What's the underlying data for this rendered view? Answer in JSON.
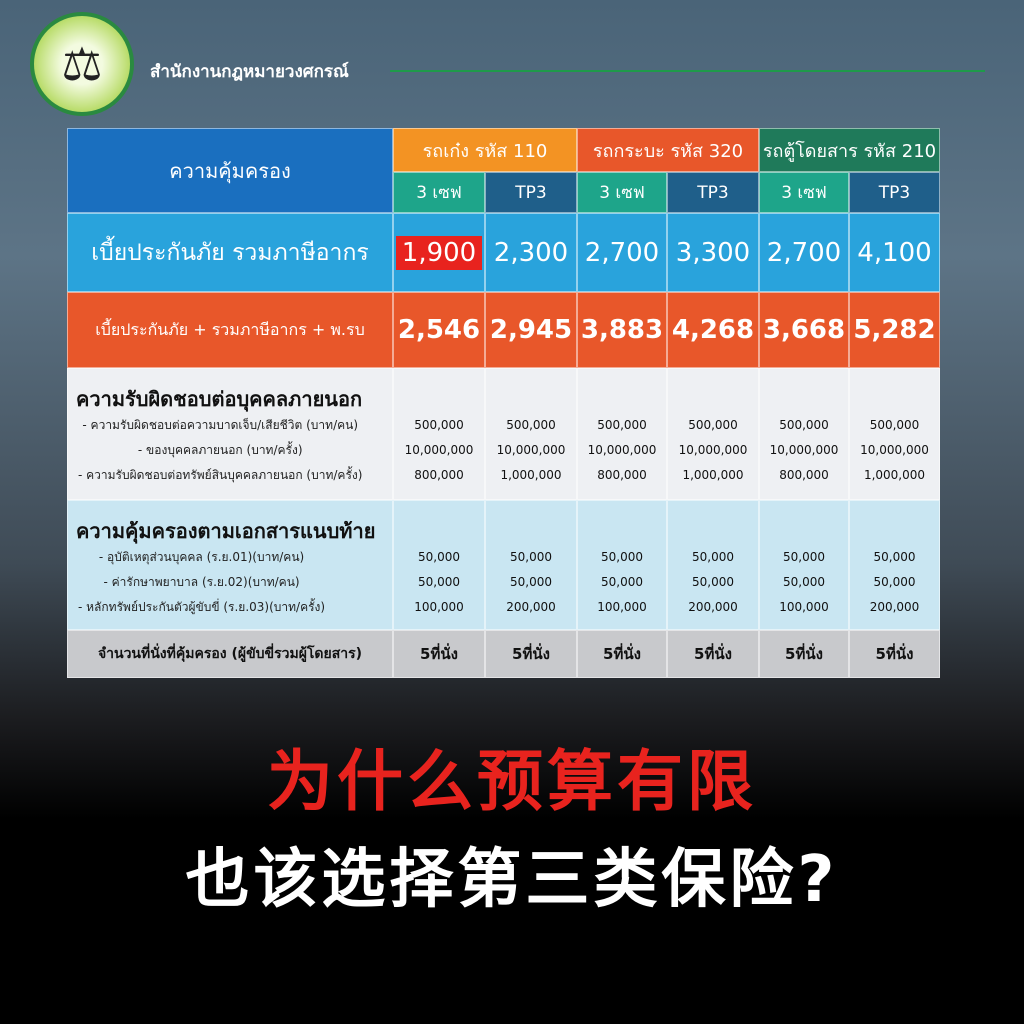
{
  "brand": {
    "name": "สำนักงานกฎหมายวงศกรณ์",
    "logo_text": "สำนักงานกฎหมายวงศกรณ์ WONGSAKORN LAW OFFICE"
  },
  "table": {
    "coverage_header": "ความคุ้มครอง",
    "vehicles": [
      {
        "label": "รถเก๋ง รหัส 110",
        "color": "#f39323"
      },
      {
        "label": "รถกระบะ รหัส 320",
        "color": "#e8572a"
      },
      {
        "label": "รถตู้โดยสาร รหัส 210",
        "color": "#1f7a5a"
      }
    ],
    "plans": [
      "3 เซฟ",
      "TP3",
      "3 เซฟ",
      "TP3",
      "3 เซฟ",
      "TP3"
    ],
    "premium": {
      "label": "เบี้ยประกันภัย รวมภาษีอากร",
      "values": [
        "1,900",
        "2,300",
        "2,700",
        "3,300",
        "2,700",
        "4,100"
      ],
      "highlight_index": 0
    },
    "premium_cmi": {
      "label": "เบี้ยประกันภัย + รวมภาษีอากร + พ.รบ",
      "values": [
        "2,546",
        "2,945",
        "3,883",
        "4,268",
        "3,668",
        "5,282"
      ]
    },
    "third_party": {
      "title": "ความรับผิดชอบต่อบุคคลภายนอก",
      "items": [
        "- ความรับผิดชอบต่อความบาดเจ็บ/เสียชีวิต (บาท/คน)",
        "- ของบุคคลภายนอก (บาท/ครั้ง)",
        "- ความรับผิดชอบต่อทรัพย์สินบุคคลภายนอก (บาท/ครั้ง)"
      ],
      "values": [
        [
          "500,000",
          "10,000,000",
          "800,000"
        ],
        [
          "500,000",
          "10,000,000",
          "1,000,000"
        ],
        [
          "500,000",
          "10,000,000",
          "800,000"
        ],
        [
          "500,000",
          "10,000,000",
          "1,000,000"
        ],
        [
          "500,000",
          "10,000,000",
          "800,000"
        ],
        [
          "500,000",
          "10,000,000",
          "1,000,000"
        ]
      ]
    },
    "endorsement": {
      "title": "ความคุ้มครองตามเอกสารแนบท้าย",
      "items": [
        "- อุบัติเหตุส่วนบุคคล (ร.ย.01)(บาท/คน)",
        "- ค่ารักษาพยาบาล (ร.ย.02)(บาท/คน)",
        "- หลักทรัพย์ประกันตัวผู้ขับขี่ (ร.ย.03)(บาท/ครั้ง)"
      ],
      "values": [
        [
          "50,000",
          "50,000",
          "100,000"
        ],
        [
          "50,000",
          "50,000",
          "200,000"
        ],
        [
          "50,000",
          "50,000",
          "100,000"
        ],
        [
          "50,000",
          "50,000",
          "200,000"
        ],
        [
          "50,000",
          "50,000",
          "100,000"
        ],
        [
          "50,000",
          "50,000",
          "200,000"
        ]
      ]
    },
    "seats": {
      "label": "จำนวนที่นั่งที่คุ้มครอง (ผู้ขับขี่รวมผู้โดยสาร)",
      "values": [
        "5ที่นั่ง",
        "5ที่นั่ง",
        "5ที่นั่ง",
        "5ที่นั่ง",
        "5ที่นั่ง",
        "5ที่นั่ง"
      ]
    }
  },
  "headline": {
    "line1": "为什么预算有限",
    "line2": "也该选择第三类保险?"
  }
}
